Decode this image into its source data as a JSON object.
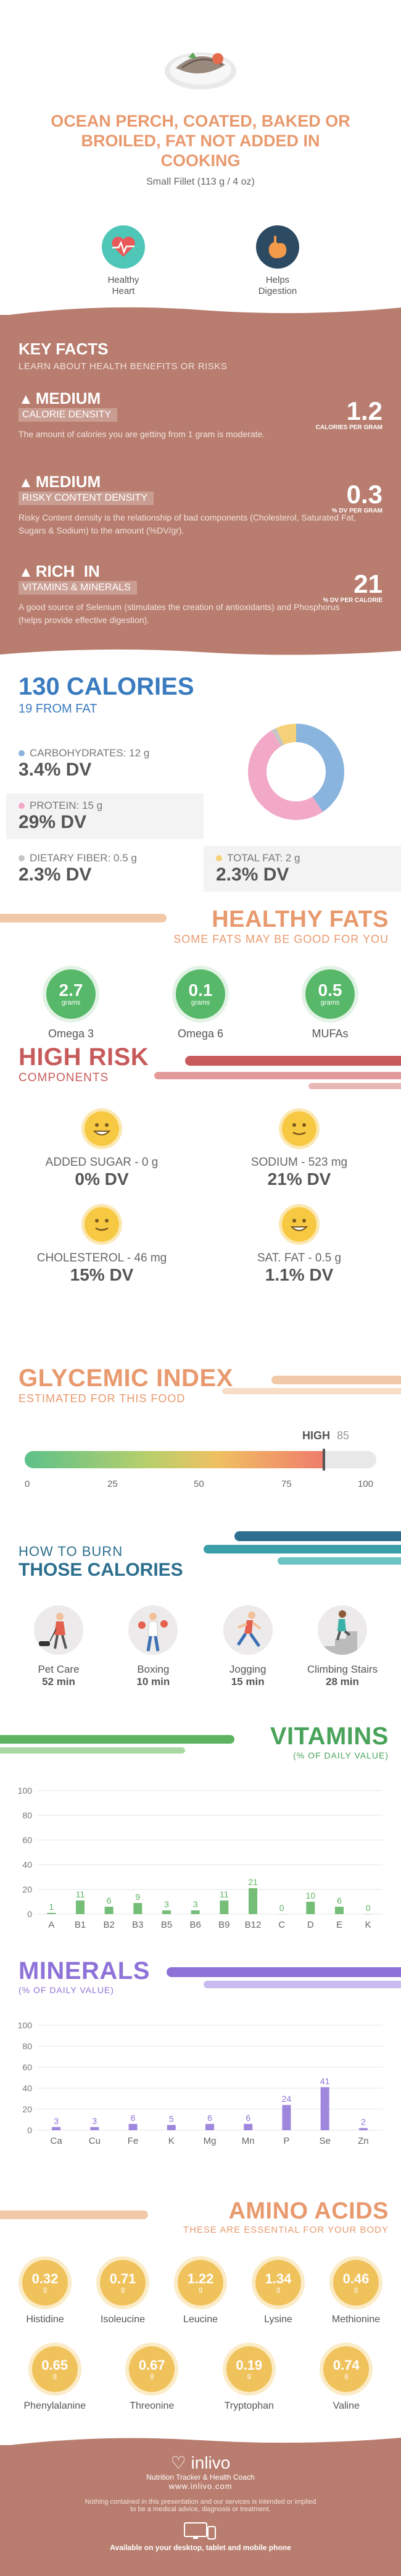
{
  "header": {
    "title_line1": "OCEAN PERCH, COATED, BAKED OR",
    "title_line2": "BROILED, FAT NOT ADDED IN",
    "title_line3": "COOKING",
    "serving": "Small Fillet (113 g / 4 oz)",
    "badges": [
      {
        "label1": "Healthy",
        "label2": "Heart",
        "icon": "heart-pulse-icon",
        "color": "#4ec6b8"
      },
      {
        "label1": "Helps",
        "label2": "Digestion",
        "icon": "stomach-icon",
        "color": "#2d4a63"
      }
    ]
  },
  "key_facts": {
    "title": "KEY FACTS",
    "subtitle": "LEARN ABOUT HEALTH BENEFITS OR RISKS",
    "items": [
      {
        "level": "MEDIUM",
        "name": "CALORIE DENSITY",
        "value": "1.2",
        "unit": "CALORIES PER GRAM",
        "desc": "The amount of calories you are getting from 1 gram is moderate."
      },
      {
        "level": "MEDIUM",
        "name": "RISKY CONTENT DENSITY",
        "value": "0.3",
        "unit": "% DV PER GRAM",
        "desc": "Risky Content density is the relationship of bad components (Cholesterol, Saturated Fat, Sugars & Sodium) to the amount (%DV/gr)."
      },
      {
        "level": "RICH  IN",
        "name": "VITAMINS & MINERALS",
        "value": "21",
        "unit": "% DV PER CALORIE",
        "desc": "A good source of Selenium (stimulates the creation of antioxidants) and Phosphorus (helps provide effective digestion)."
      }
    ]
  },
  "calories": {
    "title": "130 CALORIES",
    "from_fat": "19 FROM FAT",
    "carbs_label": "CARBOHYDRATES: 12 g",
    "carbs_dv": "3.4% DV",
    "protein_label": "PROTEIN: 15 g",
    "protein_dv": "29% DV",
    "fiber_label": "DIETARY FIBER: 0.5 g",
    "fiber_dv": "2.3% DV",
    "fat_label": "TOTAL FAT: 2 g",
    "fat_dv": "2.3% DV",
    "colors": {
      "carbs": "#89b4dd",
      "protein": "#f2a9c7",
      "fiber": "#c6c6c6",
      "fat": "#f5d27a"
    },
    "donut": {
      "carbs": 12,
      "protein": 15,
      "fiber": 0.5,
      "fat": 2
    }
  },
  "healthy_fats": {
    "title": "HEALTHY FATS",
    "subtitle": "SOME FATS MAY BE GOOD FOR YOU",
    "unit": "grams",
    "items": [
      {
        "value": "2.7",
        "label": "Omega 3"
      },
      {
        "value": "0.1",
        "label": "Omega 6"
      },
      {
        "value": "0.5",
        "label": "MUFAs"
      }
    ]
  },
  "high_risk": {
    "title": "HIGH RISK",
    "subtitle": "COMPONENTS",
    "items": [
      {
        "label": "ADDED SUGAR - 0 g",
        "dv": "0% DV"
      },
      {
        "label": "SODIUM - 523 mg",
        "dv": "21% DV"
      },
      {
        "label": "CHOLESTEROL - 46 mg",
        "dv": "15% DV"
      },
      {
        "label": "SAT. FAT - 0.5 g",
        "dv": "1.1% DV"
      }
    ]
  },
  "glycemic": {
    "title": "GLYCEMIC INDEX",
    "subtitle": "ESTIMATED FOR THIS FOOD",
    "level": "HIGH",
    "value": 85,
    "value_text": "85",
    "ticks": [
      "0",
      "25",
      "50",
      "75",
      "100"
    ]
  },
  "burn": {
    "title1": "HOW TO BURN",
    "title2": "THOSE CALORIES",
    "items": [
      {
        "label": "Pet Care",
        "time": "52 min",
        "icon": "dog-walking-icon"
      },
      {
        "label": "Boxing",
        "time": "10 min",
        "icon": "boxing-icon"
      },
      {
        "label": "Jogging",
        "time": "15 min",
        "icon": "jogging-icon"
      },
      {
        "label": "Climbing Stairs",
        "time": "28 min",
        "icon": "stairs-icon"
      }
    ]
  },
  "vitamins": {
    "title": "VITAMINS",
    "subtitle": "(% OF DAILY VALUE)",
    "chart_data": {
      "type": "bar",
      "categories": [
        "A",
        "B1",
        "B2",
        "B3",
        "B5",
        "B6",
        "B9",
        "B12",
        "C",
        "D",
        "E",
        "K"
      ],
      "values": [
        1,
        11,
        6,
        9,
        3,
        3,
        11,
        21,
        0,
        10,
        6,
        0
      ],
      "ylim": [
        0,
        100
      ],
      "yticks": [
        "0",
        "20",
        "40",
        "60",
        "80",
        "100"
      ],
      "color": "#5db35f"
    }
  },
  "minerals": {
    "title": "MINERALS",
    "subtitle": "(% OF DAILY VALUE)",
    "chart_data": {
      "type": "bar",
      "categories": [
        "Ca",
        "Cu",
        "Fe",
        "K",
        "Mg",
        "Mn",
        "P",
        "Se",
        "Zn"
      ],
      "values": [
        3,
        3,
        6,
        5,
        6,
        6,
        24,
        41,
        2
      ],
      "ylim": [
        0,
        100
      ],
      "yticks": [
        "0",
        "20",
        "40",
        "60",
        "80",
        "100"
      ],
      "color": "#8e72d8"
    }
  },
  "amino": {
    "title": "AMINO ACIDS",
    "subtitle": "THESE ARE ESSENTIAL FOR YOUR BODY",
    "unit": "g",
    "items": [
      {
        "value": "0.32",
        "label": "Histidine"
      },
      {
        "value": "0.71",
        "label": "Isoleucine"
      },
      {
        "value": "1.22",
        "label": "Leucine"
      },
      {
        "value": "1.34",
        "label": "Lysine"
      },
      {
        "value": "0.46",
        "label": "Methionine"
      },
      {
        "value": "0.65",
        "label": "Phenylalanine"
      },
      {
        "value": "0.67",
        "label": "Threonine"
      },
      {
        "value": "0.19",
        "label": "Tryptophan"
      },
      {
        "value": "0.74",
        "label": "Valine"
      }
    ]
  },
  "footer": {
    "brand": "inlivo",
    "tagline": "Nutrition Tracker & Health Coach",
    "url": "www.inlivo.com",
    "disclaimer1": "Nothing contained in this presentation and our services is intended or implied",
    "disclaimer2": "to be a medical advice, diagnosis or treatment.",
    "available": "Available on your desktop, tablet and mobile phone"
  }
}
